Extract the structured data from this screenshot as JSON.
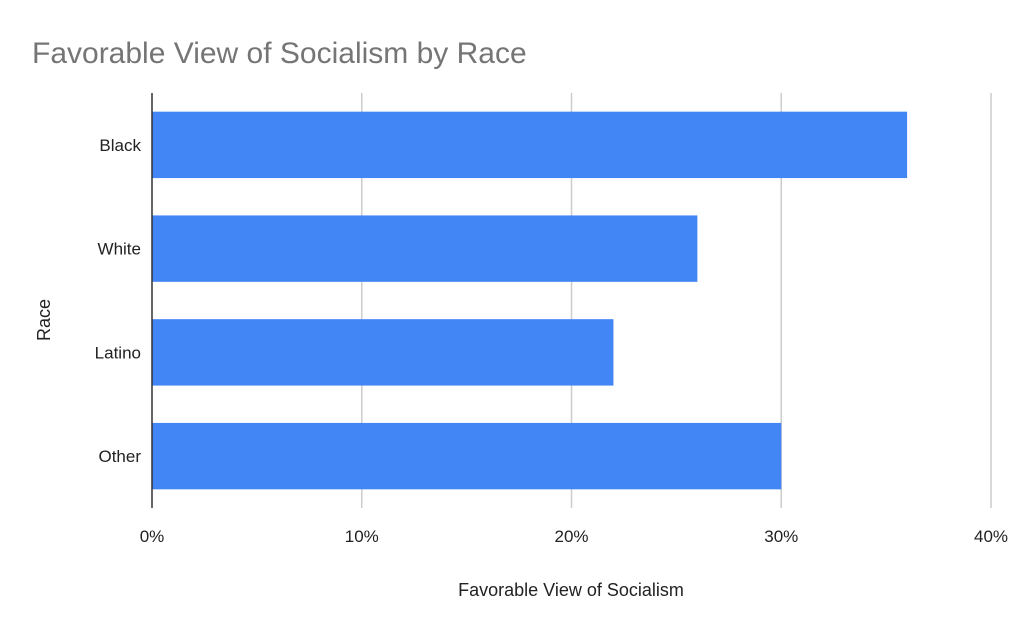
{
  "chart_data": {
    "type": "bar",
    "orientation": "horizontal",
    "title": "Favorable View of Socialism by Race",
    "xlabel": "Favorable View of Socialism",
    "ylabel": "Race",
    "categories": [
      "Black",
      "White",
      "Latino",
      "Other"
    ],
    "values": [
      36,
      26,
      22,
      30
    ],
    "value_unit": "%",
    "xlim": [
      0,
      40
    ],
    "x_ticks": [
      "0%",
      "10%",
      "20%",
      "30%",
      "40%"
    ],
    "grid": "vertical",
    "legend": "none",
    "colors": {
      "bar": "#4285f4",
      "title": "#757575",
      "text": "#222222",
      "grid": "#cccccc",
      "axis": "#333333"
    }
  }
}
